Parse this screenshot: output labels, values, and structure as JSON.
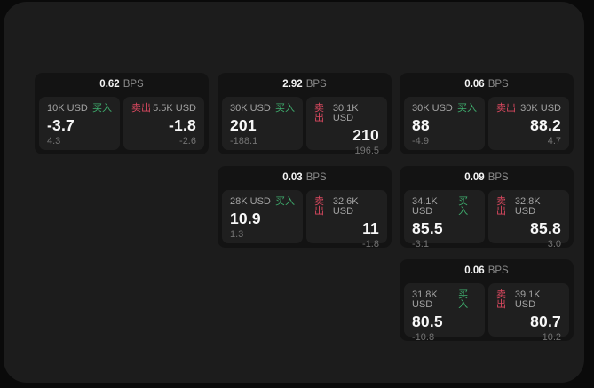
{
  "labels": {
    "bps_unit": "BPS",
    "buy": "买入",
    "sell": "卖出"
  },
  "colors": {
    "background": "#0a0a0a",
    "panel": "#1c1c1c",
    "card": "#131313",
    "tile": "#1f1f1f",
    "buy_accent": "#3fae6e",
    "sell_accent": "#d9485f"
  },
  "cards": [
    {
      "spread": "0.62",
      "buy": {
        "amount": "10K USD",
        "price": "-3.7",
        "delta": "4.3"
      },
      "sell": {
        "amount": "5.5K USD",
        "price": "-1.8",
        "delta": "-2.6"
      }
    },
    {
      "spread": "2.92",
      "buy": {
        "amount": "30K USD",
        "price": "201",
        "delta": "-188.1"
      },
      "sell": {
        "amount": "30.1K USD",
        "price": "210",
        "delta": "196.5"
      }
    },
    {
      "spread": "0.06",
      "buy": {
        "amount": "30K USD",
        "price": "88",
        "delta": "-4.9"
      },
      "sell": {
        "amount": "30K USD",
        "price": "88.2",
        "delta": "4.7"
      }
    },
    {
      "spread": "0.03",
      "buy": {
        "amount": "28K USD",
        "price": "10.9",
        "delta": "1.3"
      },
      "sell": {
        "amount": "32.6K USD",
        "price": "11",
        "delta": "-1.8"
      }
    },
    {
      "spread": "0.09",
      "buy": {
        "amount": "34.1K USD",
        "price": "85.5",
        "delta": "-3.1"
      },
      "sell": {
        "amount": "32.8K USD",
        "price": "85.8",
        "delta": "3.0"
      }
    },
    {
      "spread": "0.06",
      "buy": {
        "amount": "31.8K USD",
        "price": "80.5",
        "delta": "-10.8"
      },
      "sell": {
        "amount": "39.1K USD",
        "price": "80.7",
        "delta": "10.2"
      }
    }
  ]
}
